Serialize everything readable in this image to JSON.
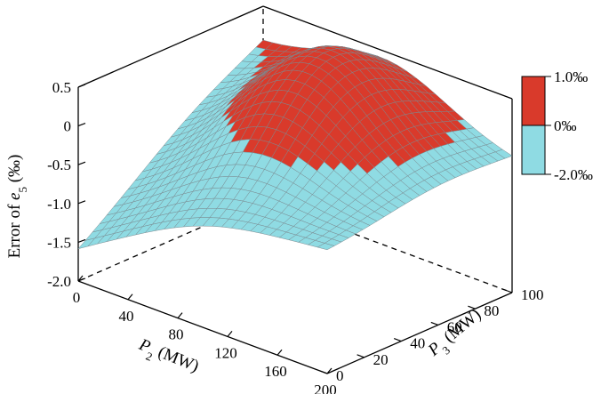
{
  "chart_data": {
    "type": "surface3d",
    "zlabel_parts": {
      "prefix": "Error of ",
      "var": "e",
      "sub": "5",
      "unit": " (‰)"
    },
    "xlabel_parts": {
      "var": "P",
      "sub": "2",
      "unit": " (MW)"
    },
    "ylabel_parts": {
      "var": "P",
      "sub": "3",
      "unit": " (MW)"
    },
    "x_ticks": [
      "0",
      "40",
      "80",
      "120",
      "160",
      "200"
    ],
    "x_tick_values": [
      0,
      40,
      80,
      120,
      160,
      200
    ],
    "y_ticks": [
      "0",
      "20",
      "40",
      "60",
      "80",
      "100"
    ],
    "y_tick_values": [
      0,
      20,
      40,
      60,
      80,
      100
    ],
    "z_ticks": [
      "0.5",
      "0",
      "-0.5",
      "-1.0",
      "-1.5",
      "-2.0"
    ],
    "z_tick_values": [
      0.5,
      0,
      -0.5,
      -1.0,
      -1.5,
      -2.0
    ],
    "xlim": [
      0,
      200
    ],
    "ylim": [
      0,
      100
    ],
    "zlim": [
      -2.0,
      0.5
    ],
    "colorbar": {
      "labels": [
        "1.0‰",
        "0‰",
        "-2.0‰"
      ],
      "positive_color": "#d93a2b",
      "negative_color": "#8fdbe3"
    },
    "corner_values": [
      {
        "x": 0,
        "y": 0,
        "z": -1.6
      },
      {
        "x": 200,
        "y": 0,
        "z": -0.42
      },
      {
        "x": 200,
        "y": 100,
        "z": -0.3
      },
      {
        "x": 0,
        "y": 100,
        "z": 0.0
      },
      {
        "x": 100,
        "y": 60,
        "z": 0.35
      }
    ],
    "colors": {
      "surface_positive": "#d93a2b",
      "surface_negative": "#8fdbe3",
      "grid_line": "#7a8a90",
      "zero_contour": "#e6d86a"
    }
  }
}
